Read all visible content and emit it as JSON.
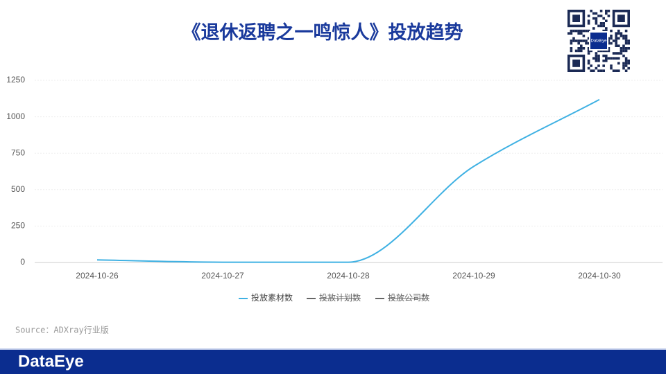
{
  "chart_data": {
    "type": "line",
    "title": "《退休返聘之一鸣惊人》投放趋势",
    "categories": [
      "2024-10-26",
      "2024-10-27",
      "2024-10-28",
      "2024-10-29",
      "2024-10-30"
    ],
    "series": [
      {
        "name": "投放素材数",
        "color": "#3fb1e3",
        "visible": true,
        "values": [
          18,
          2,
          2,
          660,
          1118
        ]
      },
      {
        "name": "投放计划数",
        "color": "#666666",
        "visible": false,
        "values": [
          null,
          null,
          null,
          null,
          null
        ]
      },
      {
        "name": "投放公司数",
        "color": "#666666",
        "visible": false,
        "values": [
          null,
          null,
          null,
          null,
          null
        ]
      }
    ],
    "ylim": [
      0,
      1250
    ],
    "yticks": [
      0,
      250,
      500,
      750,
      1000,
      1250
    ],
    "grid": true,
    "smooth": true,
    "legend": "bottom",
    "source": "Source：ADXray行业版"
  },
  "qr_logo": "DataEye",
  "footer": {
    "logo": "DataEye"
  }
}
